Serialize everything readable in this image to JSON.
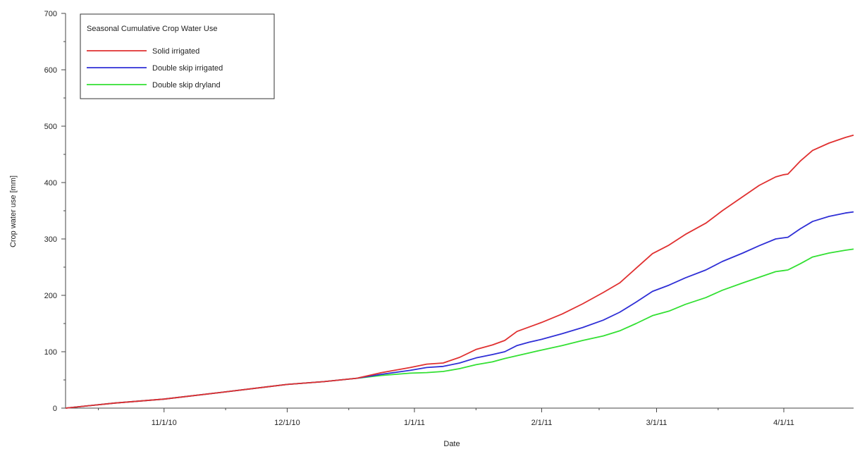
{
  "chart_data": {
    "type": "line",
    "title": "",
    "xlabel": "Date",
    "ylabel": "Crop water use [mm]",
    "ylim": [
      0,
      700
    ],
    "xlim": [
      "2010-10-08",
      "2011-04-18"
    ],
    "y_ticks": [
      "0",
      "100",
      "200",
      "300",
      "400",
      "500",
      "600",
      "700"
    ],
    "x_ticks": [
      {
        "date": "2010-11-01",
        "label": "11/1/10"
      },
      {
        "date": "2010-12-01",
        "label": "12/1/10"
      },
      {
        "date": "2011-01-01",
        "label": "1/1/11"
      },
      {
        "date": "2011-02-01",
        "label": "2/1/11"
      },
      {
        "date": "2011-03-01",
        "label": "3/1/11"
      },
      {
        "date": "2011-04-01",
        "label": "4/1/11"
      }
    ],
    "x_minor_ticks": [
      "2010-10-16",
      "2010-11-16",
      "2010-12-16",
      "2011-01-16",
      "2011-02-15",
      "2011-03-16"
    ],
    "grid": false,
    "legend": {
      "title": "Seasonal Cumulative Crop Water Use",
      "placement": "top-left"
    },
    "series": [
      {
        "name": "Solid irrigated",
        "color": "#e03030",
        "points": [
          [
            "2010-10-08",
            0
          ],
          [
            "2010-10-20",
            9
          ],
          [
            "2010-11-01",
            16
          ],
          [
            "2010-11-15",
            28
          ],
          [
            "2010-12-01",
            42
          ],
          [
            "2010-12-10",
            47
          ],
          [
            "2010-12-18",
            53
          ],
          [
            "2010-12-24",
            63
          ],
          [
            "2010-12-31",
            72
          ],
          [
            "2011-01-04",
            78
          ],
          [
            "2011-01-08",
            80
          ],
          [
            "2011-01-12",
            90
          ],
          [
            "2011-01-16",
            104
          ],
          [
            "2011-01-20",
            112
          ],
          [
            "2011-01-23",
            120
          ],
          [
            "2011-01-26",
            136
          ],
          [
            "2011-01-29",
            144
          ],
          [
            "2011-02-01",
            152
          ],
          [
            "2011-02-06",
            167
          ],
          [
            "2011-02-11",
            185
          ],
          [
            "2011-02-16",
            205
          ],
          [
            "2011-02-20",
            222
          ],
          [
            "2011-02-24",
            248
          ],
          [
            "2011-02-28",
            274
          ],
          [
            "2011-03-04",
            289
          ],
          [
            "2011-03-08",
            308
          ],
          [
            "2011-03-13",
            328
          ],
          [
            "2011-03-17",
            350
          ],
          [
            "2011-03-22",
            375
          ],
          [
            "2011-03-26",
            395
          ],
          [
            "2011-03-30",
            410
          ],
          [
            "2011-04-01",
            414
          ],
          [
            "2011-04-02",
            415
          ],
          [
            "2011-04-05",
            438
          ],
          [
            "2011-04-08",
            457
          ],
          [
            "2011-04-12",
            470
          ],
          [
            "2011-04-16",
            480
          ],
          [
            "2011-04-18",
            484
          ]
        ]
      },
      {
        "name": "Double skip irrigated",
        "color": "#2f2fd6",
        "points": [
          [
            "2010-10-08",
            0
          ],
          [
            "2010-10-20",
            9
          ],
          [
            "2010-11-01",
            16
          ],
          [
            "2010-11-15",
            28
          ],
          [
            "2010-12-01",
            42
          ],
          [
            "2010-12-10",
            47
          ],
          [
            "2010-12-18",
            53
          ],
          [
            "2010-12-24",
            60
          ],
          [
            "2010-12-31",
            67
          ],
          [
            "2011-01-04",
            72
          ],
          [
            "2011-01-08",
            74
          ],
          [
            "2011-01-12",
            80
          ],
          [
            "2011-01-16",
            89
          ],
          [
            "2011-01-20",
            95
          ],
          [
            "2011-01-23",
            100
          ],
          [
            "2011-01-26",
            111
          ],
          [
            "2011-01-29",
            117
          ],
          [
            "2011-02-01",
            122
          ],
          [
            "2011-02-06",
            132
          ],
          [
            "2011-02-11",
            143
          ],
          [
            "2011-02-16",
            156
          ],
          [
            "2011-02-20",
            170
          ],
          [
            "2011-02-24",
            188
          ],
          [
            "2011-02-28",
            207
          ],
          [
            "2011-03-04",
            218
          ],
          [
            "2011-03-08",
            231
          ],
          [
            "2011-03-13",
            245
          ],
          [
            "2011-03-17",
            260
          ],
          [
            "2011-03-22",
            275
          ],
          [
            "2011-03-26",
            288
          ],
          [
            "2011-03-30",
            300
          ],
          [
            "2011-04-01",
            302
          ],
          [
            "2011-04-02",
            303
          ],
          [
            "2011-04-05",
            318
          ],
          [
            "2011-04-08",
            331
          ],
          [
            "2011-04-12",
            340
          ],
          [
            "2011-04-16",
            346
          ],
          [
            "2011-04-18",
            348
          ]
        ]
      },
      {
        "name": "Double skip dryland",
        "color": "#33e033",
        "points": [
          [
            "2010-10-08",
            0
          ],
          [
            "2010-10-20",
            9
          ],
          [
            "2010-11-01",
            16
          ],
          [
            "2010-11-15",
            28
          ],
          [
            "2010-12-01",
            42
          ],
          [
            "2010-12-10",
            47
          ],
          [
            "2010-12-18",
            53
          ],
          [
            "2010-12-24",
            58
          ],
          [
            "2010-12-31",
            62
          ],
          [
            "2011-01-04",
            63
          ],
          [
            "2011-01-08",
            65
          ],
          [
            "2011-01-12",
            70
          ],
          [
            "2011-01-16",
            77
          ],
          [
            "2011-01-20",
            82
          ],
          [
            "2011-01-23",
            88
          ],
          [
            "2011-01-26",
            93
          ],
          [
            "2011-01-29",
            98
          ],
          [
            "2011-02-01",
            103
          ],
          [
            "2011-02-06",
            111
          ],
          [
            "2011-02-11",
            120
          ],
          [
            "2011-02-16",
            128
          ],
          [
            "2011-02-20",
            137
          ],
          [
            "2011-02-24",
            150
          ],
          [
            "2011-02-28",
            164
          ],
          [
            "2011-03-04",
            172
          ],
          [
            "2011-03-08",
            184
          ],
          [
            "2011-03-13",
            196
          ],
          [
            "2011-03-17",
            209
          ],
          [
            "2011-03-22",
            222
          ],
          [
            "2011-03-26",
            232
          ],
          [
            "2011-03-30",
            242
          ],
          [
            "2011-04-01",
            244
          ],
          [
            "2011-04-02",
            245
          ],
          [
            "2011-04-05",
            256
          ],
          [
            "2011-04-08",
            268
          ],
          [
            "2011-04-12",
            275
          ],
          [
            "2011-04-16",
            280
          ],
          [
            "2011-04-18",
            282
          ]
        ]
      }
    ]
  }
}
